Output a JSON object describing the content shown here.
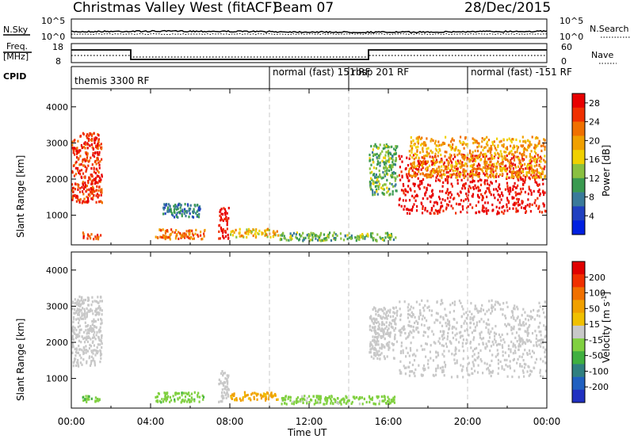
{
  "header": {
    "station_title": "Christmas Valley West (fitACF)",
    "beam_label": "Beam 07",
    "date": "28/Dec/2015"
  },
  "top_panels": {
    "nsky_label": "N.Sky",
    "nsky_ticks": [
      "10^5",
      "10^0"
    ],
    "nsearch_label": "N.Search",
    "nsearch_ticks": [
      "10^5",
      "10^0"
    ],
    "freq_label_line1": "Freq.",
    "freq_label_line2": "[MHz]",
    "freq_ticks": [
      "18",
      "8"
    ],
    "nave_label": "Nave",
    "nave_ticks": [
      "60",
      "0"
    ],
    "cpid_label": "CPID",
    "cpid_segments": [
      {
        "label": "themis 3300 RF",
        "start_hour": 0
      },
      {
        "label": "normal (fast) 151 RF",
        "start_hour": 10
      },
      {
        "label": "rbsp 201 RF",
        "start_hour": 14
      },
      {
        "label": "normal (fast) -151 RF",
        "start_hour": 20
      }
    ]
  },
  "chart_data": [
    {
      "type": "heatmap",
      "quantity": "Power",
      "ylabel": "Slant Range [km]",
      "xlabel": "",
      "xlim": [
        0,
        24
      ],
      "ylim": [
        180,
        4500
      ],
      "yticks": [
        1000,
        2000,
        3000,
        4000
      ],
      "colorbar": {
        "label": "Power [dB]",
        "ticks": [
          "4",
          "8",
          "12",
          "16",
          "20",
          "24",
          "28"
        ],
        "range": [
          0,
          30
        ],
        "colors": [
          "#0020e0",
          "#2040c0",
          "#3a7a9a",
          "#3a9a50",
          "#8ac040",
          "#f0d000",
          "#f0a000",
          "#f07000",
          "#f03000",
          "#e80000"
        ]
      },
      "regions": [
        {
          "t0": 0.0,
          "t1": 1.6,
          "r0": 1300,
          "r1": 3300,
          "level": 26
        },
        {
          "t0": 0.5,
          "t1": 1.6,
          "r0": 300,
          "r1": 550,
          "level": 24
        },
        {
          "t0": 4.2,
          "t1": 6.8,
          "r0": 300,
          "r1": 650,
          "level": 22
        },
        {
          "t0": 4.6,
          "t1": 6.6,
          "r0": 900,
          "r1": 1350,
          "level": 8
        },
        {
          "t0": 7.4,
          "t1": 8.0,
          "r0": 300,
          "r1": 1250,
          "level": 29
        },
        {
          "t0": 8.0,
          "t1": 10.5,
          "r0": 350,
          "r1": 650,
          "level": 18
        },
        {
          "t0": 10.5,
          "t1": 16.5,
          "r0": 250,
          "r1": 550,
          "level": 12
        },
        {
          "t0": 16.5,
          "t1": 24.0,
          "r0": 1000,
          "r1": 2700,
          "level": 29
        },
        {
          "t0": 17.0,
          "t1": 24.0,
          "r0": 2000,
          "r1": 3200,
          "level": 20
        },
        {
          "t0": 15.0,
          "t1": 16.5,
          "r0": 1500,
          "r1": 3000,
          "level": 12
        }
      ]
    },
    {
      "type": "heatmap",
      "quantity": "Velocity",
      "ylabel": "Slant Range [km]",
      "xlabel": "Time UT",
      "xlim": [
        0,
        24
      ],
      "ylim": [
        180,
        4500
      ],
      "yticks": [
        1000,
        2000,
        3000,
        4000
      ],
      "xticks": [
        "00:00",
        "04:00",
        "08:00",
        "12:00",
        "16:00",
        "20:00",
        "00:00"
      ],
      "colorbar": {
        "label": "Velocity [m s^-1]",
        "ticks": [
          "200",
          "100",
          "50",
          "15",
          "-15",
          "-50",
          "-100",
          "-200"
        ],
        "range": [
          -250,
          250
        ],
        "colors": [
          "#2030c0",
          "#2060c0",
          "#308080",
          "#40b040",
          "#80d040",
          "#c8c8c8",
          "#f0c000",
          "#f0a000",
          "#f07000",
          "#f03000",
          "#e00000"
        ]
      },
      "regions": [
        {
          "t0": 0.0,
          "t1": 1.6,
          "r0": 1300,
          "r1": 3300,
          "level": 0
        },
        {
          "t0": 0.5,
          "t1": 1.6,
          "r0": 300,
          "r1": 550,
          "level": -60
        },
        {
          "t0": 4.2,
          "t1": 6.8,
          "r0": 300,
          "r1": 650,
          "level": -50
        },
        {
          "t0": 7.4,
          "t1": 8.0,
          "r0": 300,
          "r1": 1250,
          "level": 0
        },
        {
          "t0": 8.0,
          "t1": 10.5,
          "r0": 350,
          "r1": 650,
          "level": 80
        },
        {
          "t0": 10.5,
          "t1": 16.5,
          "r0": 250,
          "r1": 550,
          "level": -40
        },
        {
          "t0": 16.5,
          "t1": 24.0,
          "r0": 1000,
          "r1": 3200,
          "level": 0
        },
        {
          "t0": 15.0,
          "t1": 16.5,
          "r0": 1500,
          "r1": 3000,
          "level": 0
        }
      ]
    }
  ]
}
